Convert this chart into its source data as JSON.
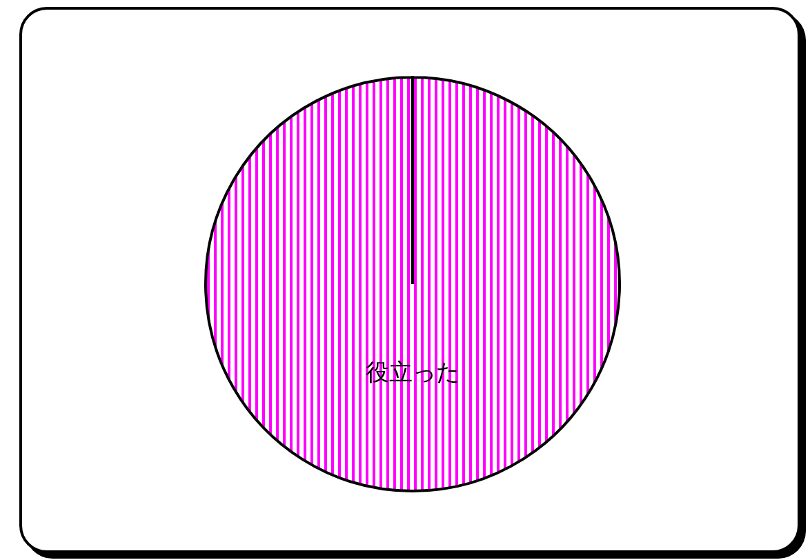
{
  "chart_data": {
    "type": "pie",
    "categories": [
      "役立った"
    ],
    "values": [
      100
    ],
    "colors": [
      "#ff00ff"
    ]
  }
}
